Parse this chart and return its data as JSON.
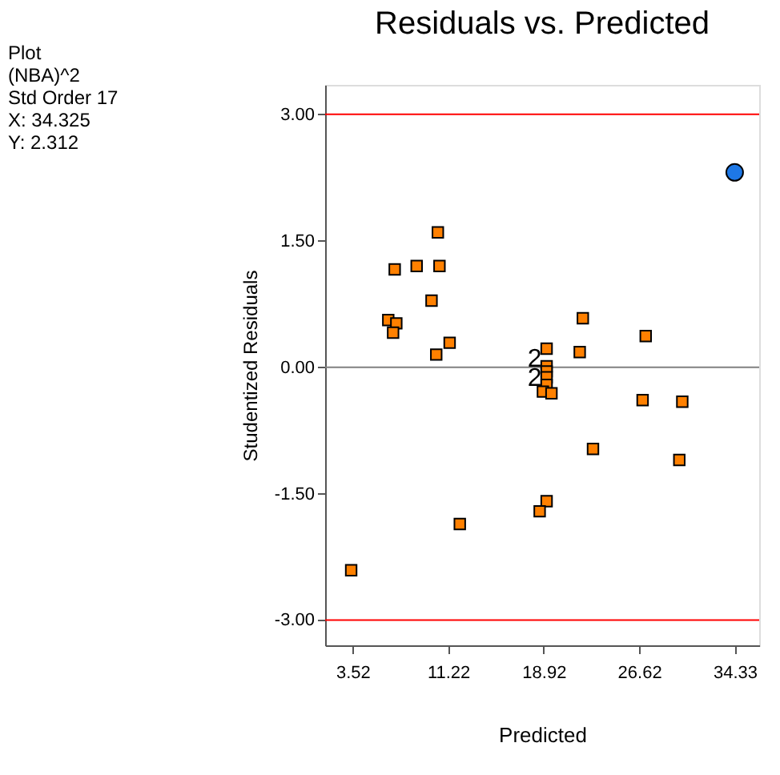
{
  "chart_data": {
    "type": "scatter",
    "title": "Residuals vs. Predicted",
    "xlabel": "Predicted",
    "ylabel": "Studentized Residuals",
    "xlim": [
      1.3,
      36.3
    ],
    "ylim": [
      -3.3,
      3.35
    ],
    "xticks": [
      3.52,
      11.22,
      18.92,
      26.62,
      34.33
    ],
    "yticks": [
      {
        "value": -3,
        "label": "-3.00"
      },
      {
        "value": -1.5,
        "label": "-1.50"
      },
      {
        "value": 0,
        "label": "0.00"
      },
      {
        "value": 1.5,
        "label": "1.50"
      },
      {
        "value": 3,
        "label": "3.00"
      }
    ],
    "grid": false,
    "series": [
      {
        "color": "#ff8000",
        "marker": "square",
        "x": [
          10.39,
          6.91,
          8.68,
          10.52,
          9.88,
          6.39,
          7.04,
          6.78,
          11.34,
          10.26,
          12.16,
          3.4,
          22.08,
          27.15,
          19.16,
          21.83,
          19.16,
          19.16,
          19.16,
          19.16,
          18.86,
          19.55,
          26.9,
          30.1,
          22.9,
          29.86,
          19.16,
          18.6
        ],
        "values": [
          1.6,
          1.16,
          1.2,
          1.2,
          0.79,
          0.56,
          0.52,
          0.41,
          0.29,
          0.15,
          -1.86,
          -2.41,
          0.58,
          0.37,
          0.22,
          0.18,
          0.01,
          -0.05,
          -0.12,
          -0.21,
          -0.29,
          -0.31,
          -0.39,
          -0.41,
          -0.97,
          -1.1,
          -1.59,
          -1.71
        ]
      },
      {
        "color": "#1e78e6",
        "marker": "circle",
        "x": [
          34.325
        ],
        "values": [
          2.312
        ]
      }
    ],
    "ref_lines": [
      {
        "axis": "y",
        "value": 3,
        "color": "#ff0000"
      },
      {
        "axis": "y",
        "value": -3,
        "color": "#ff0000"
      },
      {
        "axis": "y",
        "value": 0,
        "color": "#808080"
      }
    ],
    "annotations": [
      "Plot",
      "(NBA)^2",
      "Std Order 17",
      "X: 34.325",
      "Y: 2.312",
      {
        "text": "2",
        "x": 18.2,
        "y": 0.1
      },
      {
        "text": "2",
        "x": 18.2,
        "y": -0.13
      }
    ]
  }
}
